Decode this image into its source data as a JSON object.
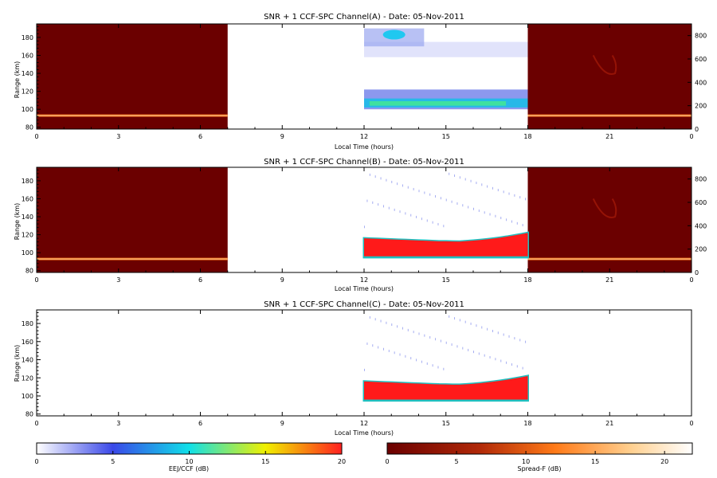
{
  "chart_data": [
    {
      "type": "heatmap",
      "title": "SNR + 1 CCF-SPC Channel(A) - Date: 05-Nov-2011",
      "xlabel": "Local Time (hours)",
      "ylabel": "Range (km)",
      "xlim": [
        0,
        24
      ],
      "ylim": [
        78,
        195
      ],
      "x_ticks": [
        "0",
        "3",
        "6",
        "9",
        "12",
        "15",
        "18",
        "21",
        "0"
      ],
      "y_ticks": [
        "80",
        "100",
        "120",
        "140",
        "160",
        "180"
      ],
      "y2_ticks": [
        "0",
        "200",
        "400",
        "600",
        "800"
      ],
      "y2lim": [
        0,
        900
      ],
      "colorscale": "EEJ/CCF",
      "night_colorscale": "Spread-F",
      "night_data": true,
      "day_data": [
        {
          "x": [
            12,
            18
          ],
          "range": [
            100,
            115
          ],
          "snr_db": 8
        },
        {
          "x": [
            12,
            18
          ],
          "range": [
            118,
            120
          ],
          "snr_db": 3
        },
        {
          "x": [
            12,
            14
          ],
          "range": [
            170,
            190
          ],
          "snr_db": 6
        },
        {
          "x": [
            12,
            18
          ],
          "range": [
            158,
            175
          ],
          "snr_db": 1
        }
      ]
    },
    {
      "type": "heatmap",
      "title": "SNR + 1 CCF-SPC Channel(B) - Date: 05-Nov-2011",
      "xlabel": "Local Time (hours)",
      "ylabel": "Range (km)",
      "xlim": [
        0,
        24
      ],
      "ylim": [
        78,
        195
      ],
      "x_ticks": [
        "0",
        "3",
        "6",
        "9",
        "12",
        "15",
        "18",
        "21",
        "0"
      ],
      "y_ticks": [
        "80",
        "100",
        "120",
        "140",
        "160",
        "180"
      ],
      "y2_ticks": [
        "0",
        "200",
        "400",
        "600",
        "800"
      ],
      "y2lim": [
        0,
        900
      ],
      "colorscale": "EEJ/CCF",
      "night_colorscale": "Spread-F",
      "night_data": true,
      "day_data": [
        {
          "x": [
            12,
            18
          ],
          "range": [
            95,
            118
          ],
          "snr_db": 20
        }
      ]
    },
    {
      "type": "heatmap",
      "title": "SNR + 1 CCF-SPC Channel(C) - Date: 05-Nov-2011",
      "xlabel": "Local Time (hours)",
      "ylabel": "Range (km)",
      "xlim": [
        0,
        24
      ],
      "ylim": [
        78,
        195
      ],
      "x_ticks": [
        "0",
        "3",
        "6",
        "9",
        "12",
        "15",
        "18",
        "21",
        "0"
      ],
      "y_ticks": [
        "80",
        "100",
        "120",
        "140",
        "160",
        "180"
      ],
      "y2_ticks": [],
      "colorscale": "EEJ/CCF",
      "night_data": false,
      "day_data": [
        {
          "x": [
            12,
            18
          ],
          "range": [
            95,
            118
          ],
          "snr_db": 20
        }
      ]
    }
  ],
  "colorbars": [
    {
      "label": "EEJ/CCF (dB)",
      "ticks": [
        "0",
        "5",
        "10",
        "15",
        "20"
      ],
      "range": [
        0,
        20
      ],
      "colors": [
        "#ffffff",
        "#3a48e8",
        "#10e0e8",
        "#f0f000",
        "#ff2020"
      ]
    },
    {
      "label": "Spread-F (dB)",
      "ticks": [
        "0",
        "5",
        "10",
        "15",
        "20"
      ],
      "range": [
        0,
        22
      ],
      "colors": [
        "#6b0000",
        "#c03010",
        "#ff8020",
        "#ffd090",
        "#ffffff"
      ]
    }
  ]
}
